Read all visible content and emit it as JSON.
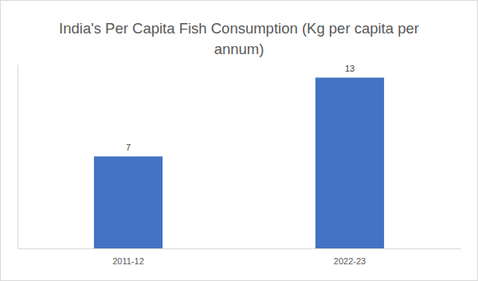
{
  "chart_data": {
    "type": "bar",
    "title": "India's Per Capita Fish Consumption (Kg per capita per annum)",
    "categories": [
      "2011-12",
      "2022-23"
    ],
    "values": [
      7,
      13
    ],
    "color": "#4472c4",
    "ylim": [
      0,
      14
    ],
    "grid": false,
    "data_labels": true,
    "tick_labels": "x"
  }
}
